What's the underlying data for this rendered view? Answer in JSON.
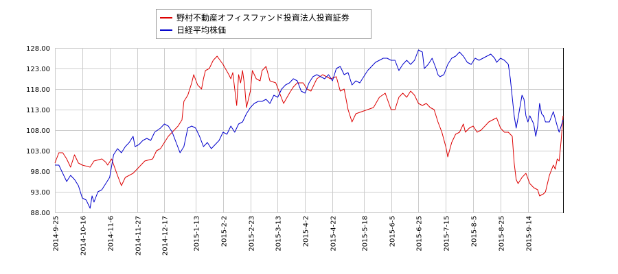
{
  "chart_data": {
    "type": "line",
    "title": "",
    "xlabel": "",
    "ylabel": "",
    "ylim": [
      88.0,
      128.0
    ],
    "y_ticks": [
      "128.00",
      "123.00",
      "118.00",
      "113.00",
      "108.00",
      "103.00",
      "98.00",
      "93.00",
      "88.00"
    ],
    "x_ticks": [
      "2014-9-25",
      "2014-10-16",
      "2014-11-6",
      "2014-11-27",
      "2014-12-17",
      "2015-1-13",
      "2015-2-2",
      "2015-2-23",
      "2015-3-13",
      "2015-4-2",
      "2015-4-22",
      "2015-5-18",
      "2015-6-5",
      "2015-6-25",
      "2015-7-15",
      "2015-8-5",
      "2015-8-25",
      "2015-9-14"
    ],
    "grid": true,
    "legend_position": "top",
    "series": [
      {
        "name": "野村不動産オフィスファンド投資法人投資証券",
        "color": "#dd0000",
        "values": [
          [
            0,
            100.0
          ],
          [
            2,
            102.5
          ],
          [
            4,
            102.5
          ],
          [
            6,
            101.0
          ],
          [
            8,
            99.0
          ],
          [
            10,
            102.0
          ],
          [
            12,
            100.0
          ],
          [
            14,
            99.5
          ],
          [
            18,
            99.0
          ],
          [
            20,
            100.5
          ],
          [
            24,
            101.0
          ],
          [
            26,
            100.2
          ],
          [
            27,
            99.5
          ],
          [
            29,
            101.0
          ],
          [
            32,
            97.0
          ],
          [
            34,
            94.5
          ],
          [
            36,
            96.5
          ],
          [
            40,
            97.5
          ],
          [
            44,
            99.5
          ],
          [
            46,
            100.5
          ],
          [
            50,
            101.0
          ],
          [
            52,
            103.0
          ],
          [
            54,
            103.5
          ],
          [
            56,
            105.0
          ],
          [
            58,
            106.5
          ],
          [
            60,
            107.5
          ],
          [
            63,
            109.0
          ],
          [
            65,
            110.5
          ],
          [
            66,
            115.0
          ],
          [
            68,
            116.5
          ],
          [
            70,
            119.5
          ],
          [
            71,
            121.5
          ],
          [
            73,
            119.0
          ],
          [
            75,
            118.0
          ],
          [
            76,
            120.5
          ],
          [
            77,
            122.5
          ],
          [
            79,
            123.0
          ],
          [
            81,
            125.0
          ],
          [
            83,
            126.0
          ],
          [
            86,
            124.0
          ],
          [
            89,
            121.5
          ],
          [
            90,
            120.5
          ],
          [
            91,
            122.0
          ],
          [
            93,
            114.0
          ],
          [
            94,
            121.5
          ],
          [
            95,
            119.5
          ],
          [
            96,
            122.5
          ],
          [
            97,
            119.0
          ],
          [
            98,
            113.5
          ],
          [
            100,
            117.5
          ],
          [
            101,
            122.5
          ],
          [
            103,
            120.5
          ],
          [
            105,
            120.0
          ],
          [
            106,
            122.5
          ],
          [
            108,
            123.5
          ],
          [
            110,
            120.0
          ],
          [
            113,
            119.5
          ],
          [
            115,
            117.0
          ],
          [
            117,
            114.5
          ],
          [
            120,
            117.0
          ],
          [
            122,
            118.5
          ],
          [
            124,
            119.5
          ],
          [
            127,
            119.5
          ],
          [
            129,
            118.0
          ],
          [
            131,
            117.5
          ],
          [
            134,
            120.5
          ],
          [
            137,
            121.5
          ],
          [
            139,
            121.0
          ],
          [
            141,
            120.5
          ],
          [
            144,
            121.0
          ],
          [
            146,
            117.5
          ],
          [
            148,
            118.0
          ],
          [
            150,
            113.0
          ],
          [
            152,
            110.0
          ],
          [
            154,
            112.0
          ],
          [
            157,
            112.5
          ],
          [
            160,
            113.0
          ],
          [
            163,
            113.5
          ],
          [
            166,
            116.0
          ],
          [
            169,
            117.0
          ],
          [
            172,
            113.0
          ],
          [
            174,
            113.0
          ],
          [
            176,
            116.0
          ],
          [
            178,
            117.0
          ],
          [
            180,
            116.0
          ],
          [
            182,
            117.5
          ],
          [
            184,
            116.5
          ],
          [
            186,
            114.5
          ],
          [
            188,
            114.0
          ],
          [
            190,
            114.5
          ],
          [
            192,
            113.5
          ],
          [
            194,
            113.0
          ],
          [
            196,
            110.0
          ],
          [
            198,
            107.5
          ],
          [
            200,
            104.0
          ],
          [
            201,
            101.5
          ],
          [
            203,
            105.0
          ],
          [
            205,
            107.0
          ],
          [
            207,
            107.5
          ],
          [
            209,
            109.5
          ],
          [
            210,
            107.5
          ],
          [
            212,
            108.5
          ],
          [
            214,
            109.0
          ],
          [
            216,
            107.5
          ],
          [
            218,
            108.0
          ],
          [
            220,
            109.0
          ],
          [
            222,
            110.0
          ],
          [
            224,
            110.5
          ],
          [
            226,
            111.0
          ],
          [
            228,
            108.5
          ],
          [
            230,
            107.5
          ],
          [
            232,
            107.5
          ],
          [
            234,
            106.5
          ],
          [
            235,
            100.0
          ],
          [
            236,
            96.0
          ],
          [
            237,
            95.0
          ],
          [
            239,
            96.5
          ],
          [
            241,
            97.5
          ],
          [
            243,
            95.0
          ],
          [
            245,
            94.0
          ],
          [
            247,
            93.5
          ],
          [
            248,
            92.0
          ],
          [
            250,
            92.5
          ],
          [
            251,
            93.0
          ],
          [
            253,
            97.0
          ],
          [
            255,
            99.5
          ],
          [
            256,
            98.5
          ],
          [
            257,
            101.0
          ],
          [
            258,
            100.5
          ],
          [
            259,
            105.5
          ],
          [
            260,
            111.5
          ]
        ]
      },
      {
        "name": "日経平均株価",
        "color": "#0000cc",
        "values": [
          [
            0,
            99.5
          ],
          [
            2,
            99.5
          ],
          [
            4,
            97.5
          ],
          [
            6,
            95.5
          ],
          [
            8,
            97.0
          ],
          [
            10,
            96.0
          ],
          [
            12,
            94.5
          ],
          [
            14,
            91.5
          ],
          [
            16,
            91.0
          ],
          [
            18,
            89.0
          ],
          [
            19,
            92.0
          ],
          [
            20,
            90.5
          ],
          [
            22,
            93.0
          ],
          [
            24,
            93.5
          ],
          [
            26,
            95.0
          ],
          [
            28,
            96.5
          ],
          [
            30,
            102.0
          ],
          [
            32,
            103.5
          ],
          [
            34,
            102.5
          ],
          [
            36,
            104.0
          ],
          [
            38,
            105.0
          ],
          [
            40,
            106.5
          ],
          [
            41,
            104.0
          ],
          [
            43,
            104.5
          ],
          [
            45,
            105.5
          ],
          [
            47,
            106.0
          ],
          [
            49,
            105.5
          ],
          [
            51,
            107.5
          ],
          [
            54,
            108.5
          ],
          [
            56,
            109.5
          ],
          [
            58,
            109.0
          ],
          [
            60,
            107.5
          ],
          [
            62,
            105.0
          ],
          [
            64,
            102.5
          ],
          [
            66,
            104.0
          ],
          [
            68,
            108.5
          ],
          [
            70,
            109.0
          ],
          [
            72,
            108.5
          ],
          [
            74,
            106.5
          ],
          [
            76,
            104.0
          ],
          [
            78,
            105.0
          ],
          [
            80,
            103.5
          ],
          [
            82,
            104.5
          ],
          [
            84,
            105.5
          ],
          [
            86,
            107.5
          ],
          [
            88,
            107.0
          ],
          [
            90,
            109.0
          ],
          [
            92,
            107.5
          ],
          [
            94,
            109.5
          ],
          [
            96,
            110.0
          ],
          [
            98,
            112.0
          ],
          [
            100,
            113.5
          ],
          [
            102,
            114.5
          ],
          [
            104,
            115.0
          ],
          [
            106,
            115.0
          ],
          [
            108,
            115.5
          ],
          [
            110,
            114.5
          ],
          [
            112,
            116.5
          ],
          [
            114,
            116.0
          ],
          [
            116,
            118.0
          ],
          [
            118,
            119.0
          ],
          [
            120,
            119.5
          ],
          [
            122,
            120.5
          ],
          [
            124,
            120.0
          ],
          [
            126,
            117.5
          ],
          [
            128,
            117.0
          ],
          [
            130,
            119.5
          ],
          [
            132,
            121.0
          ],
          [
            134,
            121.5
          ],
          [
            136,
            121.0
          ],
          [
            138,
            120.5
          ],
          [
            140,
            121.5
          ],
          [
            142,
            120.0
          ],
          [
            144,
            123.0
          ],
          [
            146,
            123.5
          ],
          [
            148,
            121.5
          ],
          [
            150,
            122.0
          ],
          [
            152,
            119.0
          ],
          [
            154,
            120.0
          ],
          [
            156,
            119.5
          ],
          [
            158,
            121.0
          ],
          [
            160,
            122.5
          ],
          [
            162,
            123.5
          ],
          [
            164,
            124.5
          ],
          [
            166,
            125.0
          ],
          [
            168,
            125.5
          ],
          [
            170,
            125.5
          ],
          [
            172,
            125.0
          ],
          [
            174,
            125.0
          ],
          [
            176,
            122.5
          ],
          [
            178,
            124.0
          ],
          [
            180,
            125.0
          ],
          [
            182,
            124.0
          ],
          [
            184,
            125.0
          ],
          [
            186,
            127.5
          ],
          [
            188,
            127.0
          ],
          [
            189,
            123.0
          ],
          [
            191,
            124.0
          ],
          [
            193,
            125.5
          ],
          [
            195,
            123.0
          ],
          [
            196,
            121.5
          ],
          [
            197,
            121.0
          ],
          [
            199,
            121.5
          ],
          [
            201,
            124.0
          ],
          [
            203,
            125.5
          ],
          [
            205,
            126.0
          ],
          [
            207,
            127.0
          ],
          [
            209,
            126.0
          ],
          [
            211,
            124.5
          ],
          [
            213,
            124.0
          ],
          [
            215,
            125.5
          ],
          [
            217,
            125.0
          ],
          [
            219,
            125.5
          ],
          [
            221,
            126.0
          ],
          [
            223,
            126.5
          ],
          [
            225,
            125.5
          ],
          [
            226,
            124.5
          ],
          [
            228,
            125.5
          ],
          [
            230,
            125.0
          ],
          [
            232,
            124.0
          ],
          [
            233,
            120.5
          ],
          [
            234,
            116.0
          ],
          [
            235,
            111.5
          ],
          [
            236,
            108.5
          ],
          [
            237,
            111.0
          ],
          [
            239,
            116.5
          ],
          [
            240,
            115.5
          ],
          [
            241,
            111.5
          ],
          [
            242,
            110.0
          ],
          [
            243,
            111.5
          ],
          [
            245,
            109.5
          ],
          [
            246,
            106.5
          ],
          [
            247,
            109.0
          ],
          [
            248,
            114.5
          ],
          [
            249,
            112.0
          ],
          [
            250,
            111.5
          ],
          [
            251,
            110.0
          ],
          [
            253,
            110.0
          ],
          [
            255,
            112.5
          ],
          [
            257,
            109.0
          ],
          [
            258,
            107.5
          ],
          [
            259,
            109.0
          ],
          [
            260,
            110.5
          ]
        ]
      }
    ]
  },
  "x_tick_indices": [
    0,
    14,
    28,
    42,
    56,
    72,
    86,
    100,
    114,
    128,
    142,
    158,
    172,
    186,
    200,
    214,
    228,
    242
  ],
  "x_max_index": 260
}
